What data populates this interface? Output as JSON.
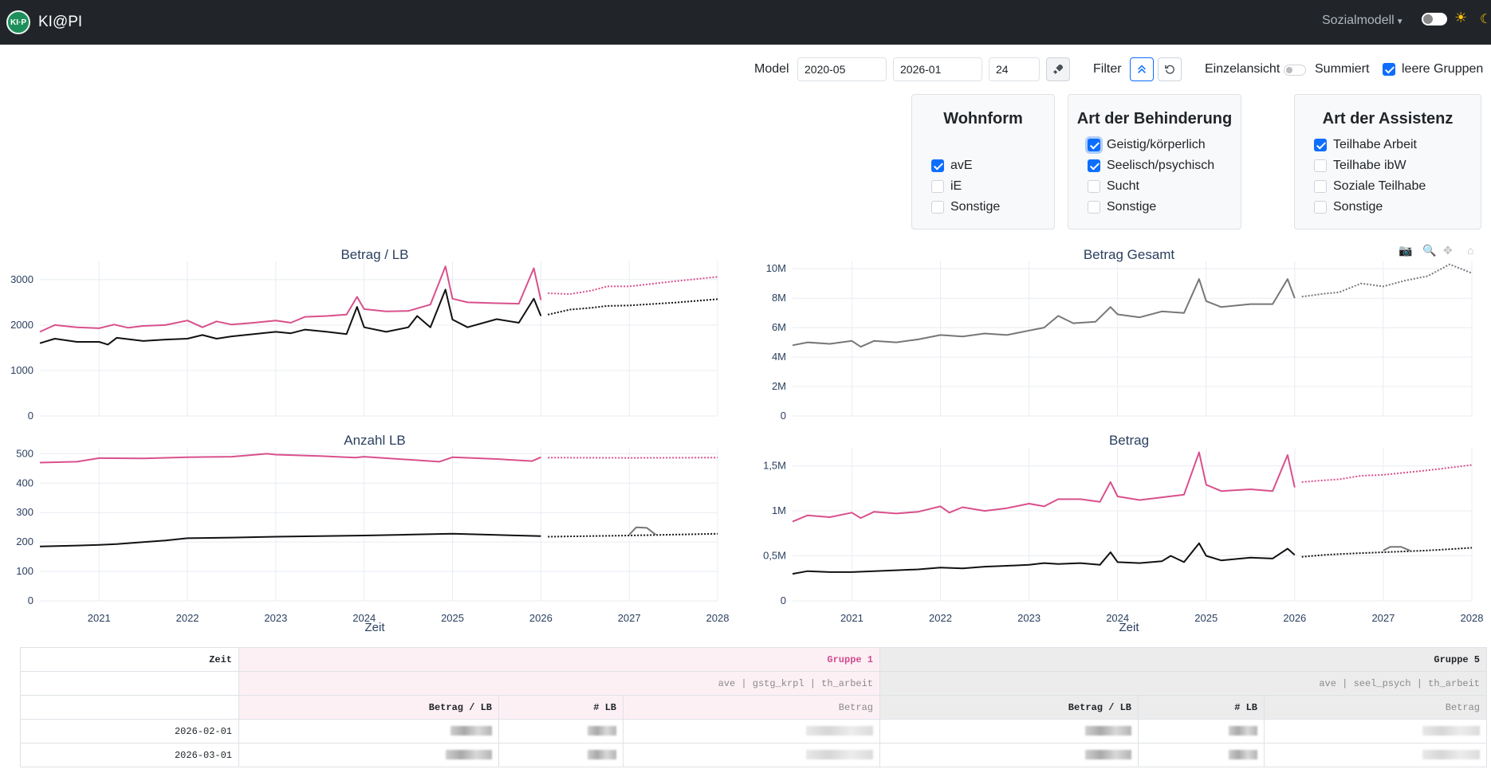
{
  "app": {
    "logo_text": "KI·P",
    "name": "KI@PI",
    "menu": "Sozialmodell"
  },
  "controls": {
    "model_label": "Model",
    "date_from": "2020-05",
    "date_to": "2026-01",
    "horizon": "24",
    "filter_label": "Filter",
    "einzelansicht_label": "Einzelansicht",
    "summiert_label": "Summiert",
    "leere_gruppen_label": "leere Gruppen",
    "leere_gruppen_checked": true
  },
  "filters": {
    "wohnform": {
      "title": "Wohnform",
      "options": [
        {
          "label": "avE",
          "checked": true
        },
        {
          "label": "iE",
          "checked": false
        },
        {
          "label": "Sonstige",
          "checked": false
        }
      ]
    },
    "behinderung": {
      "title": "Art der Behinderung",
      "options": [
        {
          "label": "Geistig/körperlich",
          "checked": true
        },
        {
          "label": "Seelisch/psychisch",
          "checked": true
        },
        {
          "label": "Sucht",
          "checked": false
        },
        {
          "label": "Sonstige",
          "checked": false
        }
      ]
    },
    "assistenz": {
      "title": "Art der Assistenz",
      "options": [
        {
          "label": "Teilhabe Arbeit",
          "checked": true
        },
        {
          "label": "Teilhabe ibW",
          "checked": false
        },
        {
          "label": "Soziale Teilhabe",
          "checked": false
        },
        {
          "label": "Sonstige",
          "checked": false
        }
      ]
    }
  },
  "colors": {
    "pink": "#d9508c",
    "black": "#111111",
    "gray": "#777777",
    "plot_grid": "#e8ecf2"
  },
  "chart_data": [
    {
      "type": "line",
      "title": "Betrag / LB",
      "xlabel": "",
      "ylabel": "",
      "x_range": [
        2020.33,
        2028.0
      ],
      "ylim": [
        0,
        3400
      ],
      "yticks": [
        0,
        1000,
        2000,
        3000
      ],
      "ytick_labels": [
        "0",
        "1000",
        "2000",
        "3000"
      ],
      "series": [
        {
          "color": "pink",
          "style": "solid",
          "x": [
            2020.33,
            2020.5,
            2020.75,
            2021.0,
            2021.17,
            2021.33,
            2021.5,
            2021.75,
            2022.0,
            2022.17,
            2022.33,
            2022.5,
            2022.75,
            2023.0,
            2023.17,
            2023.33,
            2023.58,
            2023.8,
            2023.92,
            2024.0,
            2024.25,
            2024.5,
            2024.75,
            2024.92,
            2025.0,
            2025.17,
            2025.5,
            2025.75,
            2025.92,
            2026.0
          ],
          "y": [
            1850,
            2000,
            1950,
            1930,
            2010,
            1940,
            1980,
            2000,
            2100,
            1950,
            2080,
            2010,
            2050,
            2100,
            2050,
            2180,
            2200,
            2230,
            2620,
            2350,
            2300,
            2310,
            2450,
            3290,
            2580,
            2500,
            2480,
            2470,
            3250,
            2550
          ]
        },
        {
          "color": "black",
          "style": "solid",
          "x": [
            2020.33,
            2020.5,
            2020.75,
            2021.0,
            2021.1,
            2021.2,
            2021.5,
            2021.75,
            2022.0,
            2022.17,
            2022.33,
            2022.5,
            2022.75,
            2023.0,
            2023.17,
            2023.33,
            2023.58,
            2023.8,
            2023.92,
            2024.0,
            2024.25,
            2024.5,
            2024.6,
            2024.75,
            2024.92,
            2025.0,
            2025.17,
            2025.5,
            2025.75,
            2025.92,
            2026.0
          ],
          "y": [
            1600,
            1700,
            1630,
            1630,
            1570,
            1720,
            1650,
            1680,
            1700,
            1780,
            1700,
            1750,
            1800,
            1850,
            1820,
            1900,
            1850,
            1800,
            2400,
            1950,
            1850,
            1950,
            2200,
            1950,
            2780,
            2120,
            1950,
            2130,
            2050,
            2580,
            2200
          ]
        },
        {
          "color": "pink",
          "style": "dotted",
          "x": [
            2026.08,
            2026.33,
            2026.58,
            2026.75,
            2027.0,
            2027.5,
            2028.0
          ],
          "y": [
            2700,
            2680,
            2760,
            2850,
            2850,
            2960,
            3060
          ]
        },
        {
          "color": "black",
          "style": "dotted",
          "x": [
            2026.08,
            2026.33,
            2026.58,
            2026.75,
            2027.0,
            2027.5,
            2028.0
          ],
          "y": [
            2230,
            2340,
            2380,
            2420,
            2430,
            2490,
            2570
          ]
        }
      ]
    },
    {
      "type": "line",
      "title": "Anzahl LB",
      "xlabel": "Zeit",
      "ylabel": "",
      "x_range": [
        2020.33,
        2028.0
      ],
      "ylim": [
        0,
        520
      ],
      "yticks": [
        0,
        100,
        200,
        300,
        400,
        500
      ],
      "ytick_labels": [
        "0",
        "100",
        "200",
        "300",
        "400",
        "500"
      ],
      "xticks": [
        2021,
        2022,
        2023,
        2024,
        2025,
        2026,
        2027,
        2028
      ],
      "series": [
        {
          "color": "pink",
          "style": "solid",
          "x": [
            2020.33,
            2020.75,
            2021.0,
            2021.5,
            2022.0,
            2022.5,
            2022.9,
            2023.0,
            2023.5,
            2023.9,
            2024.0,
            2024.5,
            2024.85,
            2025.0,
            2025.5,
            2025.9,
            2026.0
          ],
          "y": [
            470,
            473,
            485,
            484,
            488,
            490,
            500,
            497,
            492,
            487,
            490,
            480,
            473,
            488,
            482,
            475,
            488
          ]
        },
        {
          "color": "black",
          "style": "solid",
          "x": [
            2020.33,
            2020.75,
            2021.0,
            2021.2,
            2021.5,
            2021.75,
            2022.0,
            2022.5,
            2023.0,
            2023.5,
            2024.0,
            2024.5,
            2025.0,
            2025.5,
            2026.0
          ],
          "y": [
            185,
            188,
            190,
            193,
            200,
            205,
            213,
            215,
            218,
            220,
            222,
            225,
            228,
            224,
            220
          ]
        },
        {
          "color": "pink",
          "style": "dotted",
          "x": [
            2026.08,
            2027.0,
            2028.0
          ],
          "y": [
            487,
            486,
            487
          ]
        },
        {
          "color": "black",
          "style": "dotted",
          "x": [
            2026.08,
            2027.0,
            2028.0
          ],
          "y": [
            218,
            222,
            228
          ]
        },
        {
          "color": "gray",
          "style": "solid",
          "x": [
            2027.0,
            2027.08,
            2027.2,
            2027.3
          ],
          "y": [
            225,
            250,
            248,
            225
          ]
        }
      ]
    },
    {
      "type": "line",
      "title": "Betrag Gesamt",
      "xlabel": "",
      "ylabel": "",
      "x_range": [
        2020.33,
        2028.0
      ],
      "ylim": [
        0,
        10500000
      ],
      "yticks": [
        0,
        2000000,
        4000000,
        6000000,
        8000000,
        10000000
      ],
      "ytick_labels": [
        "0",
        "2M",
        "4M",
        "6M",
        "8M",
        "10M"
      ],
      "series": [
        {
          "color": "gray",
          "style": "solid",
          "x": [
            2020.33,
            2020.5,
            2020.75,
            2021.0,
            2021.1,
            2021.25,
            2021.5,
            2021.75,
            2022.0,
            2022.25,
            2022.5,
            2022.75,
            2023.0,
            2023.17,
            2023.33,
            2023.5,
            2023.75,
            2023.92,
            2024.0,
            2024.25,
            2024.5,
            2024.75,
            2024.92,
            2025.0,
            2025.17,
            2025.5,
            2025.75,
            2025.92,
            2026.0
          ],
          "y": [
            4800000,
            5000000,
            4900000,
            5100000,
            4700000,
            5100000,
            5000000,
            5200000,
            5500000,
            5400000,
            5600000,
            5500000,
            5800000,
            6000000,
            6800000,
            6300000,
            6400000,
            7400000,
            6900000,
            6700000,
            7100000,
            7000000,
            9300000,
            7800000,
            7400000,
            7600000,
            7600000,
            9300000,
            8000000
          ]
        },
        {
          "color": "gray",
          "style": "dotted",
          "x": [
            2026.08,
            2026.33,
            2026.5,
            2026.75,
            2027.0,
            2027.25,
            2027.5,
            2027.75,
            2028.0
          ],
          "y": [
            8100000,
            8300000,
            8400000,
            9000000,
            8800000,
            9200000,
            9500000,
            10300000,
            9700000
          ]
        }
      ]
    },
    {
      "type": "line",
      "title": "Betrag",
      "xlabel": "Zeit",
      "ylabel": "",
      "x_range": [
        2020.33,
        2028.0
      ],
      "ylim": [
        0,
        1700000
      ],
      "yticks": [
        0,
        500000,
        1000000,
        1500000
      ],
      "ytick_labels": [
        "0",
        "0,5M",
        "1M",
        "1,5M"
      ],
      "xticks": [
        2021,
        2022,
        2023,
        2024,
        2025,
        2026,
        2027,
        2028
      ],
      "series": [
        {
          "color": "pink",
          "style": "solid",
          "x": [
            2020.33,
            2020.5,
            2020.75,
            2021.0,
            2021.1,
            2021.25,
            2021.5,
            2021.75,
            2022.0,
            2022.1,
            2022.25,
            2022.5,
            2022.75,
            2023.0,
            2023.17,
            2023.33,
            2023.58,
            2023.8,
            2023.92,
            2024.0,
            2024.25,
            2024.5,
            2024.75,
            2024.92,
            2025.0,
            2025.17,
            2025.5,
            2025.75,
            2025.92,
            2026.0
          ],
          "y": [
            880000,
            950000,
            930000,
            980000,
            920000,
            990000,
            970000,
            990000,
            1050000,
            980000,
            1040000,
            1000000,
            1030000,
            1080000,
            1050000,
            1130000,
            1130000,
            1100000,
            1320000,
            1160000,
            1120000,
            1150000,
            1180000,
            1650000,
            1290000,
            1220000,
            1240000,
            1220000,
            1620000,
            1260000
          ]
        },
        {
          "color": "black",
          "style": "solid",
          "x": [
            2020.33,
            2020.5,
            2020.75,
            2021.0,
            2021.25,
            2021.5,
            2021.75,
            2022.0,
            2022.25,
            2022.5,
            2022.75,
            2023.0,
            2023.17,
            2023.33,
            2023.58,
            2023.8,
            2023.92,
            2024.0,
            2024.25,
            2024.5,
            2024.6,
            2024.75,
            2024.92,
            2025.0,
            2025.17,
            2025.5,
            2025.75,
            2025.92,
            2026.0
          ],
          "y": [
            300000,
            330000,
            320000,
            320000,
            330000,
            340000,
            350000,
            370000,
            360000,
            380000,
            390000,
            400000,
            420000,
            410000,
            420000,
            400000,
            540000,
            430000,
            420000,
            440000,
            500000,
            430000,
            640000,
            500000,
            450000,
            480000,
            470000,
            580000,
            510000
          ]
        },
        {
          "color": "pink",
          "style": "dotted",
          "x": [
            2026.08,
            2026.33,
            2026.5,
            2026.75,
            2027.0,
            2027.5,
            2028.0
          ],
          "y": [
            1320000,
            1340000,
            1350000,
            1390000,
            1400000,
            1450000,
            1510000
          ]
        },
        {
          "color": "black",
          "style": "dotted",
          "x": [
            2026.08,
            2026.33,
            2026.5,
            2026.75,
            2027.0,
            2027.5,
            2028.0
          ],
          "y": [
            490000,
            510000,
            520000,
            530000,
            540000,
            560000,
            590000
          ]
        },
        {
          "color": "gray",
          "style": "solid",
          "x": [
            2027.0,
            2027.08,
            2027.2,
            2027.3
          ],
          "y": [
            560000,
            600000,
            600000,
            560000
          ]
        }
      ]
    }
  ],
  "table": {
    "zeit_label": "Zeit",
    "groups": [
      {
        "name": "Gruppe 1",
        "tags": "ave | gstg_krpl | th_arbeit",
        "cols": [
          "Betrag / LB",
          "# LB",
          "Betrag"
        ]
      },
      {
        "name": "Gruppe 5",
        "tags": "ave | seel_psych | th_arbeit",
        "cols": [
          "Betrag / LB",
          "# LB",
          "Betrag"
        ]
      }
    ],
    "rows": [
      {
        "date": "2026-02-01"
      },
      {
        "date": "2026-03-01"
      }
    ]
  }
}
